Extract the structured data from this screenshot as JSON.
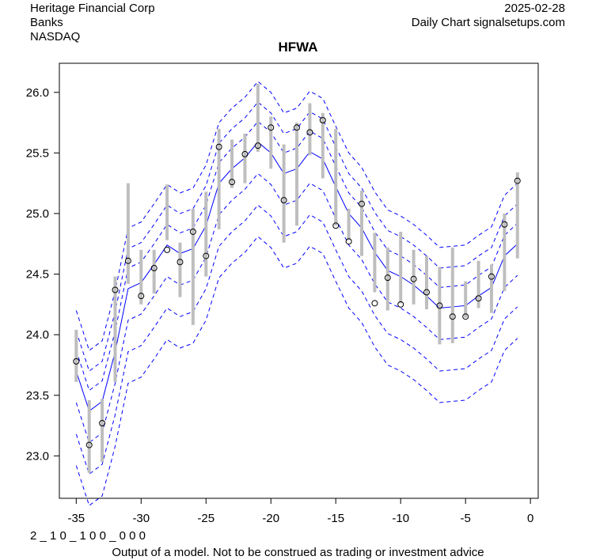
{
  "header": {
    "company": "Heritage Financial Corp",
    "sector": "Banks",
    "exchange": "NASDAQ",
    "date": "2025-02-28",
    "source": "Daily Chart signalsetups.com"
  },
  "footer": {
    "code": "2 _ 1 0 _ 1 0 0 _ 0 0 0",
    "disclaimer": "Output of a model. Not to be construed as trading or investment advice"
  },
  "colors": {
    "band": "#0000ff",
    "range": "#bebebe",
    "point": "#000000"
  },
  "chart_data": {
    "type": "line",
    "title": "HFWA",
    "xlim": [
      -36.3,
      0.6
    ],
    "ylim": [
      22.65,
      26.24
    ],
    "x_ticks": [
      -35,
      -30,
      -25,
      -20,
      -15,
      -10,
      -5,
      0
    ],
    "x_tick_labels": [
      "-35",
      "-30",
      "-25",
      "-20",
      "-15",
      "-10",
      "-5",
      "0"
    ],
    "y_ticks": [
      23.0,
      23.5,
      24.0,
      24.5,
      25.0,
      25.5,
      26.0
    ],
    "y_tick_labels": [
      "23.0",
      "23.5",
      "24.0",
      "24.5",
      "25.0",
      "25.5",
      "26.0"
    ],
    "x": [
      -35,
      -34,
      -33,
      -32,
      -31,
      -30,
      -29,
      -28,
      -27,
      -26,
      -25,
      -24,
      -23,
      -22,
      -21,
      -20,
      -19,
      -18,
      -17,
      -16,
      -15,
      -14,
      -13,
      -12,
      -11,
      -10,
      -9,
      -8,
      -7,
      -6,
      -5,
      -4,
      -3,
      -2,
      -1
    ],
    "close": [
      23.78,
      23.09,
      23.27,
      24.37,
      24.61,
      24.32,
      24.55,
      24.7,
      24.6,
      24.85,
      24.65,
      25.55,
      25.26,
      25.49,
      25.56,
      25.71,
      25.11,
      25.71,
      25.67,
      25.77,
      24.9,
      24.77,
      25.08,
      24.26,
      24.47,
      24.25,
      24.46,
      24.35,
      24.24,
      24.15,
      24.15,
      24.3,
      24.48,
      24.91,
      25.27
    ],
    "high": [
      24.04,
      23.46,
      23.47,
      24.48,
      25.25,
      24.7,
      24.7,
      25.24,
      24.76,
      25.04,
      25.18,
      25.7,
      25.61,
      25.66,
      26.07,
      25.8,
      25.57,
      25.75,
      25.91,
      25.83,
      25.7,
      25.04,
      25.19,
      24.84,
      24.72,
      24.85,
      24.7,
      24.65,
      24.56,
      24.72,
      24.44,
      24.61,
      24.58,
      25.0,
      25.34
    ],
    "low": [
      23.61,
      22.86,
      22.95,
      23.61,
      24.42,
      24.25,
      24.34,
      24.78,
      24.31,
      24.08,
      24.48,
      24.87,
      25.21,
      25.25,
      25.51,
      25.37,
      24.76,
      24.9,
      25.48,
      25.29,
      24.9,
      24.78,
      24.65,
      24.35,
      24.2,
      24.26,
      24.25,
      24.21,
      23.92,
      23.93,
      24.14,
      24.22,
      24.18,
      24.36,
      24.63
    ],
    "center": [
      23.7,
      23.37,
      23.45,
      23.86,
      24.38,
      24.43,
      24.58,
      24.74,
      24.67,
      24.71,
      24.9,
      25.25,
      25.37,
      25.46,
      25.59,
      25.5,
      25.33,
      25.37,
      25.51,
      25.45,
      25.22,
      25.0,
      24.88,
      24.68,
      24.53,
      24.48,
      24.41,
      24.32,
      24.22,
      24.23,
      24.24,
      24.32,
      24.39,
      24.65,
      24.75
    ],
    "band_offsets": [
      0.17,
      0.33,
      0.5,
      -0.26,
      -0.52,
      -0.78
    ]
  }
}
